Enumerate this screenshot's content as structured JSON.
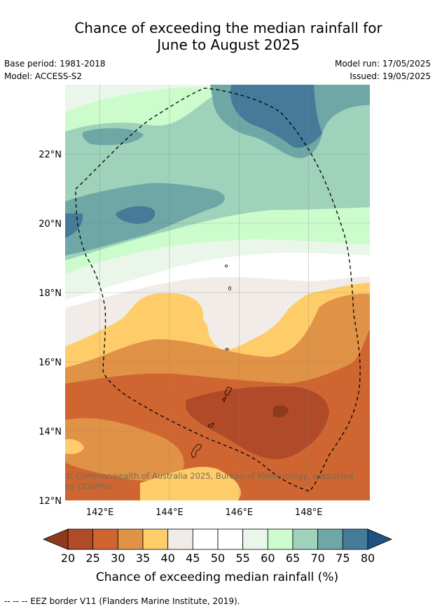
{
  "header": {
    "title_line1": "Chance of exceeding the median rainfall for",
    "title_line2": "June to August 2025",
    "base_period": "Base period: 1981-2018",
    "model": "Model: ACCESS-S2",
    "model_run": "Model run: 17/05/2025",
    "issued": "Issued: 19/05/2025"
  },
  "map": {
    "copyright_line1": "© Commonwealth of Australia 2025, Bureau of Meteorology, supported",
    "copyright_line2": "by COSPPac"
  },
  "chart_data": {
    "type": "heatmap",
    "title": "Chance of exceeding the median rainfall for June to August 2025",
    "xlabel": "",
    "ylabel": "",
    "x_ticks": [
      "142°E",
      "144°E",
      "146°E",
      "148°E"
    ],
    "y_ticks": [
      "22°N",
      "20°N",
      "18°N",
      "16°N",
      "14°N",
      "12°N"
    ],
    "xlim": [
      141.0,
      149.75
    ],
    "ylim": [
      12,
      24
    ],
    "grid": true,
    "colorbar": {
      "label": "Chance of exceeding median rainfall (%)",
      "ticks": [
        20,
        25,
        30,
        35,
        40,
        45,
        50,
        55,
        60,
        65,
        70,
        75,
        80
      ],
      "below_color": "#8e3a1d",
      "above_color": "#1e5381",
      "colors": [
        "#b04a28",
        "#cf6632",
        "#e09247",
        "#fecd6a",
        "#f1ece7",
        "#ffffff",
        "#ffffff",
        "#ebf6ea",
        "#ccfccc",
        "#9ed2bb",
        "#6fa6a6",
        "#457b99"
      ]
    },
    "regions": [
      {
        "category": "75-80",
        "lon_range": [
          145.8,
          147.9
        ],
        "lat_range": [
          22.8,
          23.9
        ]
      },
      {
        "category": "75-80",
        "lon_range": [
          143.4,
          144.6
        ],
        "lat_range": [
          19.9,
          20.5
        ]
      },
      {
        "category": "70-75",
        "lon_range": [
          141.0,
          145.5
        ],
        "lat_range": [
          19.5,
          21.2
        ]
      },
      {
        "category": "65-70",
        "lon_range": [
          141.0,
          149.75
        ],
        "lat_range": [
          19.3,
          22.3
        ]
      },
      {
        "category": "60-65",
        "lon_range": [
          141.0,
          149.75
        ],
        "lat_range": [
          18.9,
          23.6
        ]
      },
      {
        "category": "40-45",
        "lon_range": [
          141.0,
          149.75
        ],
        "lat_range": [
          16.7,
          18.5
        ]
      },
      {
        "category": "35-40",
        "lon_range": [
          141.0,
          149.75
        ],
        "lat_range": [
          15.5,
          18.4
        ]
      },
      {
        "category": "30-35",
        "lon_range": [
          141.0,
          149.75
        ],
        "lat_range": [
          14.0,
          16.6
        ]
      },
      {
        "category": "25-30",
        "lon_range": [
          141.0,
          149.75
        ],
        "lat_range": [
          12.2,
          15.3
        ]
      },
      {
        "category": "20-25",
        "lon_range": [
          145.3,
          148.6
        ],
        "lat_range": [
          13.2,
          15.0
        ]
      }
    ],
    "legend_note": "-- -- -- EEZ border V11 (Flanders Marine Institute, 2019)."
  },
  "footer": {
    "eez_note": "--  --  -- EEZ border V11 (Flanders Marine Institute, 2019)."
  }
}
